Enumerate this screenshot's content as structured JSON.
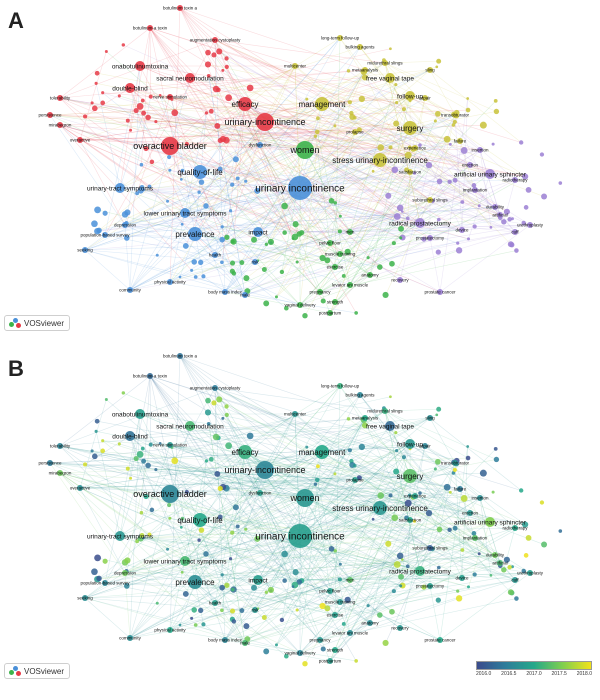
{
  "panels": [
    {
      "letter": "A",
      "mode": "cluster"
    },
    {
      "letter": "B",
      "mode": "overlay"
    }
  ],
  "brand": "VOSviewer",
  "overlay_scale": {
    "ticks": [
      "2016.0",
      "2016.5",
      "2017.0",
      "2017.5",
      "2018.0"
    ],
    "colors": [
      "#3b4b8c",
      "#2e7d9a",
      "#25a88a",
      "#7fcf4f",
      "#f2e21a"
    ]
  },
  "cluster_colors": {
    "red": "#e63946",
    "yellow": "#c8c23a",
    "blue": "#4a90d9",
    "purple": "#9b7fd4",
    "green": "#3cb34a"
  },
  "terms": [
    {
      "label": "urinary incontinence",
      "cluster": "blue",
      "year": 2016.9,
      "weight": 5
    },
    {
      "label": "women",
      "cluster": "green",
      "year": 2016.8,
      "weight": 4
    },
    {
      "label": "urinary-incontinence",
      "cluster": "red",
      "year": 2016.6,
      "weight": 4
    },
    {
      "label": "overactive bladder",
      "cluster": "red",
      "year": 2016.6,
      "weight": 4
    },
    {
      "label": "stress urinary-incontinence",
      "cluster": "yellow",
      "year": 2016.8,
      "weight": 3
    },
    {
      "label": "quality-of-life",
      "cluster": "blue",
      "year": 2017.0,
      "weight": 3
    },
    {
      "label": "efficacy",
      "cluster": "red",
      "year": 2017.1,
      "weight": 3
    },
    {
      "label": "management",
      "cluster": "yellow",
      "year": 2017.0,
      "weight": 3
    },
    {
      "label": "prevalence",
      "cluster": "blue",
      "year": 2016.7,
      "weight": 3
    },
    {
      "label": "surgery",
      "cluster": "yellow",
      "year": 2017.3,
      "weight": 3
    },
    {
      "label": "artificial urinary sphincter",
      "cluster": "purple",
      "year": 2017.5,
      "weight": 2
    },
    {
      "label": "radical prostatectomy",
      "cluster": "purple",
      "year": 2017.1,
      "weight": 2
    },
    {
      "label": "double-blind",
      "cluster": "red",
      "year": 2016.4,
      "weight": 2
    },
    {
      "label": "onabotulinumtoxina",
      "cluster": "red",
      "year": 2016.9,
      "weight": 2
    },
    {
      "label": "sacral neuromodulation",
      "cluster": "red",
      "year": 2017.2,
      "weight": 2
    },
    {
      "label": "free vaginal tape",
      "cluster": "yellow",
      "year": 2016.3,
      "weight": 2
    },
    {
      "label": "follow-up",
      "cluster": "yellow",
      "year": 2016.8,
      "weight": 2
    },
    {
      "label": "midurethral slings",
      "cluster": "yellow",
      "year": 2017.1,
      "weight": 1
    },
    {
      "label": "experience",
      "cluster": "yellow",
      "year": 2016.9,
      "weight": 1
    },
    {
      "label": "suburethral slings",
      "cluster": "yellow",
      "year": 2016.2,
      "weight": 1
    },
    {
      "label": "urinary-tract symptoms",
      "cluster": "blue",
      "year": 2016.8,
      "weight": 2
    },
    {
      "label": "lower urinary tract symptoms",
      "cluster": "blue",
      "year": 2017.2,
      "weight": 2
    },
    {
      "label": "impact",
      "cluster": "blue",
      "year": 2016.9,
      "weight": 2
    },
    {
      "label": "dysfunction",
      "cluster": "blue",
      "year": 2016.9,
      "weight": 1
    },
    {
      "label": "men",
      "cluster": "green",
      "year": 2017.3,
      "weight": 1
    },
    {
      "label": "pelvic floor",
      "cluster": "green",
      "year": 2016.9,
      "weight": 1
    },
    {
      "label": "muscle training",
      "cluster": "green",
      "year": 2016.8,
      "weight": 1
    },
    {
      "label": "prostatectomy",
      "cluster": "purple",
      "year": 2016.9,
      "weight": 1
    },
    {
      "label": "implantation",
      "cluster": "purple",
      "year": 2017.3,
      "weight": 1
    },
    {
      "label": "erection",
      "cluster": "purple",
      "year": 2016.8,
      "weight": 1
    },
    {
      "label": "tolerability",
      "cluster": "red",
      "year": 2016.6,
      "weight": 1
    },
    {
      "label": "persistence",
      "cluster": "red",
      "year": 2016.5,
      "weight": 1
    },
    {
      "label": "mirabegron",
      "cluster": "red",
      "year": 2017.4,
      "weight": 1
    },
    {
      "label": "overactive",
      "cluster": "red",
      "year": 2016.7,
      "weight": 1
    },
    {
      "label": "botulinum toxin a",
      "cluster": "red",
      "year": 2016.4,
      "weight": 1
    },
    {
      "label": "botulinum-a toxin",
      "cluster": "red",
      "year": 2016.3,
      "weight": 1
    },
    {
      "label": "augmentation cystoplasty",
      "cluster": "red",
      "year": 2016.5,
      "weight": 1
    },
    {
      "label": "nerve stimulation",
      "cluster": "red",
      "year": 2016.8,
      "weight": 1
    },
    {
      "label": "multicenter",
      "cluster": "yellow",
      "year": 2016.8,
      "weight": 1
    },
    {
      "label": "long-term follow-up",
      "cluster": "yellow",
      "year": 2017.1,
      "weight": 1
    },
    {
      "label": "bulking agents",
      "cluster": "yellow",
      "year": 2016.6,
      "weight": 1
    },
    {
      "label": "metaanalysis",
      "cluster": "yellow",
      "year": 2017.0,
      "weight": 1
    },
    {
      "label": "prolapse",
      "cluster": "yellow",
      "year": 2016.9,
      "weight": 1
    },
    {
      "label": "sling",
      "cluster": "yellow",
      "year": 2016.7,
      "weight": 1
    },
    {
      "label": "repair",
      "cluster": "yellow",
      "year": 2016.6,
      "weight": 1
    },
    {
      "label": "transobturator",
      "cluster": "yellow",
      "year": 2016.8,
      "weight": 1
    },
    {
      "label": "failure",
      "cluster": "yellow",
      "year": 2016.5,
      "weight": 1
    },
    {
      "label": "satisfaction",
      "cluster": "yellow",
      "year": 2017.0,
      "weight": 1
    },
    {
      "label": "depression",
      "cluster": "blue",
      "year": 2017.4,
      "weight": 1
    },
    {
      "label": "population-based survey",
      "cluster": "blue",
      "year": 2016.6,
      "weight": 1
    },
    {
      "label": "seeking",
      "cluster": "blue",
      "year": 2016.7,
      "weight": 1
    },
    {
      "label": "health",
      "cluster": "blue",
      "year": 2016.9,
      "weight": 1
    },
    {
      "label": "risk",
      "cluster": "blue",
      "year": 2016.8,
      "weight": 1
    },
    {
      "label": "physical activity",
      "cluster": "blue",
      "year": 2017.0,
      "weight": 1
    },
    {
      "label": "body mass index",
      "cluster": "blue",
      "year": 2016.6,
      "weight": 1
    },
    {
      "label": "male",
      "cluster": "blue",
      "year": 2017.2,
      "weight": 1
    },
    {
      "label": "community",
      "cluster": "blue",
      "year": 2016.7,
      "weight": 1
    },
    {
      "label": "exercise",
      "cluster": "green",
      "year": 2016.9,
      "weight": 1
    },
    {
      "label": "anatomy",
      "cluster": "green",
      "year": 2016.7,
      "weight": 1
    },
    {
      "label": "levator ani muscle",
      "cluster": "green",
      "year": 2016.7,
      "weight": 1
    },
    {
      "label": "pregnancy",
      "cluster": "green",
      "year": 2016.8,
      "weight": 1
    },
    {
      "label": "strength",
      "cluster": "green",
      "year": 2017.0,
      "weight": 1
    },
    {
      "label": "postpartum",
      "cluster": "green",
      "year": 2016.9,
      "weight": 1
    },
    {
      "label": "vaginal delivery",
      "cluster": "green",
      "year": 2016.6,
      "weight": 1
    },
    {
      "label": "prostate cancer",
      "cluster": "purple",
      "year": 2017.0,
      "weight": 1
    },
    {
      "label": "recovery",
      "cluster": "purple",
      "year": 2016.8,
      "weight": 1
    },
    {
      "label": "durability",
      "cluster": "purple",
      "year": 2017.4,
      "weight": 1
    },
    {
      "label": "artificial",
      "cluster": "purple",
      "year": 2017.2,
      "weight": 1
    },
    {
      "label": "urethroplasty",
      "cluster": "purple",
      "year": 2016.9,
      "weight": 1
    },
    {
      "label": "radiotherapy",
      "cluster": "purple",
      "year": 2017.0,
      "weight": 1
    },
    {
      "label": "insertion",
      "cluster": "purple",
      "year": 2016.7,
      "weight": 1
    },
    {
      "label": "device",
      "cluster": "purple",
      "year": 2016.9,
      "weight": 1
    },
    {
      "label": "cuff",
      "cluster": "purple",
      "year": 2016.8,
      "weight": 1
    }
  ]
}
